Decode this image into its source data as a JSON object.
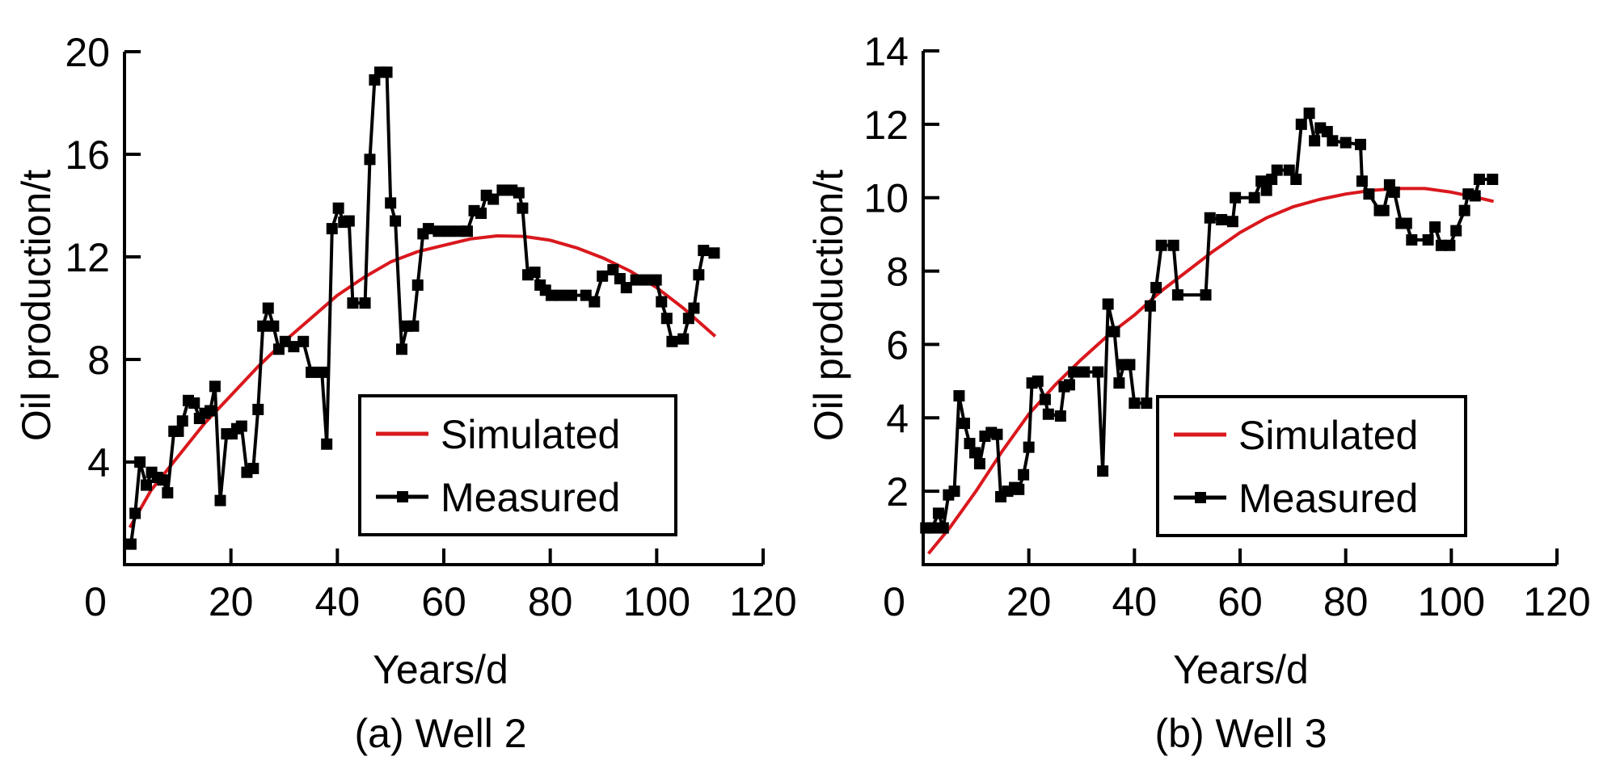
{
  "figure": {
    "colors": {
      "simulated": "#d9181d",
      "measured": "#000000",
      "axis": "#000000",
      "background": "#ffffff"
    }
  },
  "chart_data": [
    {
      "id": "well2",
      "type": "line",
      "caption": "(a) Well 2",
      "title": "",
      "xlabel": "Years/d",
      "ylabel": "Oil production/t",
      "xlim": [
        0,
        120
      ],
      "ylim": [
        0,
        20
      ],
      "xticks": [
        0,
        20,
        40,
        60,
        80,
        100,
        120
      ],
      "xtick_labels": [
        "0",
        "20",
        "40",
        "60",
        "80",
        "100",
        "120"
      ],
      "yticks": [
        4,
        8,
        12,
        16,
        20
      ],
      "ytick_labels": [
        "4",
        "8",
        "12",
        "16",
        "20"
      ],
      "grid": false,
      "legend": {
        "position": "bottom-right",
        "entries": [
          "Simulated",
          "Measured"
        ]
      },
      "series": [
        {
          "name": "Simulated",
          "style": "line",
          "color": "#d9181d",
          "x": [
            1,
            5,
            10,
            15,
            20,
            25,
            30,
            35,
            40,
            45,
            50,
            55,
            60,
            65,
            70,
            75,
            80,
            85,
            90,
            95,
            100,
            105,
            111
          ],
          "y": [
            1.45,
            2.9,
            4.2,
            5.5,
            6.6,
            7.7,
            8.7,
            9.6,
            10.5,
            11.2,
            11.8,
            12.2,
            12.45,
            12.7,
            12.82,
            12.8,
            12.65,
            12.35,
            11.95,
            11.45,
            10.8,
            10.0,
            8.9
          ]
        },
        {
          "name": "Measured",
          "style": "line-square-markers",
          "color": "#000000",
          "x": [
            1.2,
            2.0,
            2.9,
            4.1,
            5.1,
            6.2,
            7.2,
            8.1,
            9.3,
            10.1,
            10.9,
            12.0,
            13.1,
            14.1,
            15.1,
            16.1,
            17.0,
            18.0,
            19.2,
            20.2,
            21.1,
            22.0,
            23.0,
            24.2,
            25.1,
            26.0,
            27.0,
            28.0,
            29.0,
            30.2,
            31.8,
            33.6,
            35.1,
            37.1,
            38.0,
            39.0,
            40.2,
            41.2,
            42.2,
            42.9,
            45.2,
            46.1,
            47.0,
            48.0,
            49.3,
            50.0,
            50.9,
            52.1,
            53.1,
            54.3,
            55.1,
            56.1,
            57.1,
            59.0,
            61.0,
            63.0,
            64.4,
            65.7,
            67.0,
            68.0,
            69.3,
            71.0,
            72.8,
            74.1,
            74.8,
            75.8,
            77.1,
            78.1,
            79.1,
            80.2,
            82.0,
            84.0,
            86.7,
            88.3,
            89.8,
            91.8,
            93.1,
            94.3,
            96.1,
            98.0,
            99.9,
            100.9,
            101.9,
            102.9,
            105.0,
            106.0,
            107.0,
            107.9,
            108.8,
            110.8
          ],
          "y": [
            0.8,
            2.0,
            4.0,
            3.1,
            3.6,
            3.4,
            3.3,
            2.8,
            5.2,
            5.2,
            5.6,
            6.4,
            6.3,
            5.7,
            5.9,
            6.0,
            6.95,
            2.5,
            5.1,
            5.1,
            5.3,
            5.4,
            3.6,
            3.75,
            6.05,
            9.3,
            10.0,
            9.3,
            8.4,
            8.7,
            8.5,
            8.7,
            7.5,
            7.5,
            4.7,
            13.1,
            13.9,
            13.35,
            13.4,
            10.2,
            10.2,
            15.8,
            18.9,
            19.2,
            19.2,
            14.1,
            13.4,
            8.4,
            9.3,
            9.3,
            10.9,
            12.9,
            13.1,
            13.0,
            13.0,
            13.0,
            13.0,
            13.8,
            13.7,
            14.4,
            14.25,
            14.6,
            14.6,
            14.5,
            13.9,
            11.3,
            11.4,
            10.9,
            10.7,
            10.5,
            10.5,
            10.5,
            10.5,
            10.25,
            11.25,
            11.5,
            11.15,
            10.8,
            11.1,
            11.1,
            11.1,
            10.25,
            9.6,
            8.7,
            8.8,
            9.6,
            10.0,
            11.3,
            12.25,
            12.15
          ]
        }
      ]
    },
    {
      "id": "well3",
      "type": "line",
      "caption": "(b) Well 3",
      "title": "",
      "xlabel": "Years/d",
      "ylabel": "Oil production/t",
      "xlim": [
        0,
        120
      ],
      "ylim": [
        0,
        14
      ],
      "xticks": [
        0,
        20,
        40,
        60,
        80,
        100,
        120
      ],
      "xtick_labels": [
        "0",
        "20",
        "40",
        "60",
        "80",
        "100",
        "120"
      ],
      "yticks": [
        2,
        4,
        6,
        8,
        10,
        12,
        14
      ],
      "ytick_labels": [
        "2",
        "4",
        "6",
        "8",
        "10",
        "12",
        "14"
      ],
      "grid": false,
      "legend": {
        "position": "bottom-right",
        "entries": [
          "Simulated",
          "Measured"
        ]
      },
      "series": [
        {
          "name": "Simulated",
          "style": "line",
          "color": "#d9181d",
          "x": [
            1,
            5,
            10,
            15,
            20,
            25,
            30,
            35,
            40,
            45,
            50,
            55,
            60,
            65,
            70,
            75,
            80,
            85,
            90,
            95,
            100,
            105,
            108
          ],
          "y": [
            0.3,
            1.0,
            2.0,
            3.1,
            4.1,
            4.9,
            5.6,
            6.25,
            6.8,
            7.45,
            8.0,
            8.55,
            9.05,
            9.45,
            9.75,
            9.95,
            10.1,
            10.2,
            10.25,
            10.25,
            10.15,
            10.0,
            9.9
          ]
        },
        {
          "name": "Measured",
          "style": "line-square-markers",
          "color": "#000000",
          "x": [
            0.5,
            1.7,
            2.9,
            3.8,
            4.8,
            5.9,
            6.8,
            7.8,
            8.8,
            9.8,
            10.7,
            11.7,
            12.9,
            14.0,
            14.7,
            16.0,
            17.3,
            18.1,
            19.0,
            20.0,
            20.6,
            21.7,
            23.1,
            23.7,
            26.0,
            26.7,
            27.7,
            28.5,
            30.5,
            33.1,
            34.0,
            35.0,
            36.2,
            37.1,
            38.0,
            39.1,
            40.0,
            42.3,
            43.0,
            44.1,
            45.1,
            47.4,
            48.2,
            53.5,
            54.3,
            56.5,
            58.6,
            59.1,
            62.7,
            64.0,
            65.0,
            66.0,
            67.0,
            69.3,
            70.6,
            71.6,
            73.1,
            74.1,
            75.2,
            76.5,
            77.5,
            80.0,
            82.8,
            83.1,
            84.4,
            86.4,
            87.2,
            88.3,
            89.2,
            90.5,
            91.5,
            92.5,
            95.6,
            96.9,
            98.1,
            99.7,
            100.9,
            102.5,
            103.2,
            104.5,
            105.3,
            107.8
          ],
          "y": [
            1.0,
            1.0,
            1.4,
            1.0,
            1.9,
            2.0,
            4.6,
            3.85,
            3.3,
            3.05,
            2.75,
            3.5,
            3.6,
            3.55,
            1.85,
            2.0,
            2.1,
            2.05,
            2.45,
            3.2,
            4.95,
            5.0,
            4.5,
            4.1,
            4.05,
            4.85,
            4.9,
            5.25,
            5.25,
            5.25,
            2.55,
            7.1,
            6.35,
            4.95,
            5.45,
            5.45,
            4.4,
            4.4,
            7.05,
            7.55,
            8.7,
            8.7,
            7.35,
            7.35,
            9.45,
            9.4,
            9.35,
            10.0,
            10.0,
            10.45,
            10.2,
            10.5,
            10.75,
            10.75,
            10.5,
            12.0,
            12.3,
            11.55,
            11.9,
            11.8,
            11.55,
            11.5,
            11.45,
            10.45,
            10.1,
            9.65,
            9.65,
            10.35,
            10.15,
            9.3,
            9.3,
            8.85,
            8.85,
            9.2,
            8.7,
            8.7,
            9.1,
            9.65,
            10.1,
            10.05,
            10.5,
            10.5
          ]
        }
      ]
    }
  ]
}
